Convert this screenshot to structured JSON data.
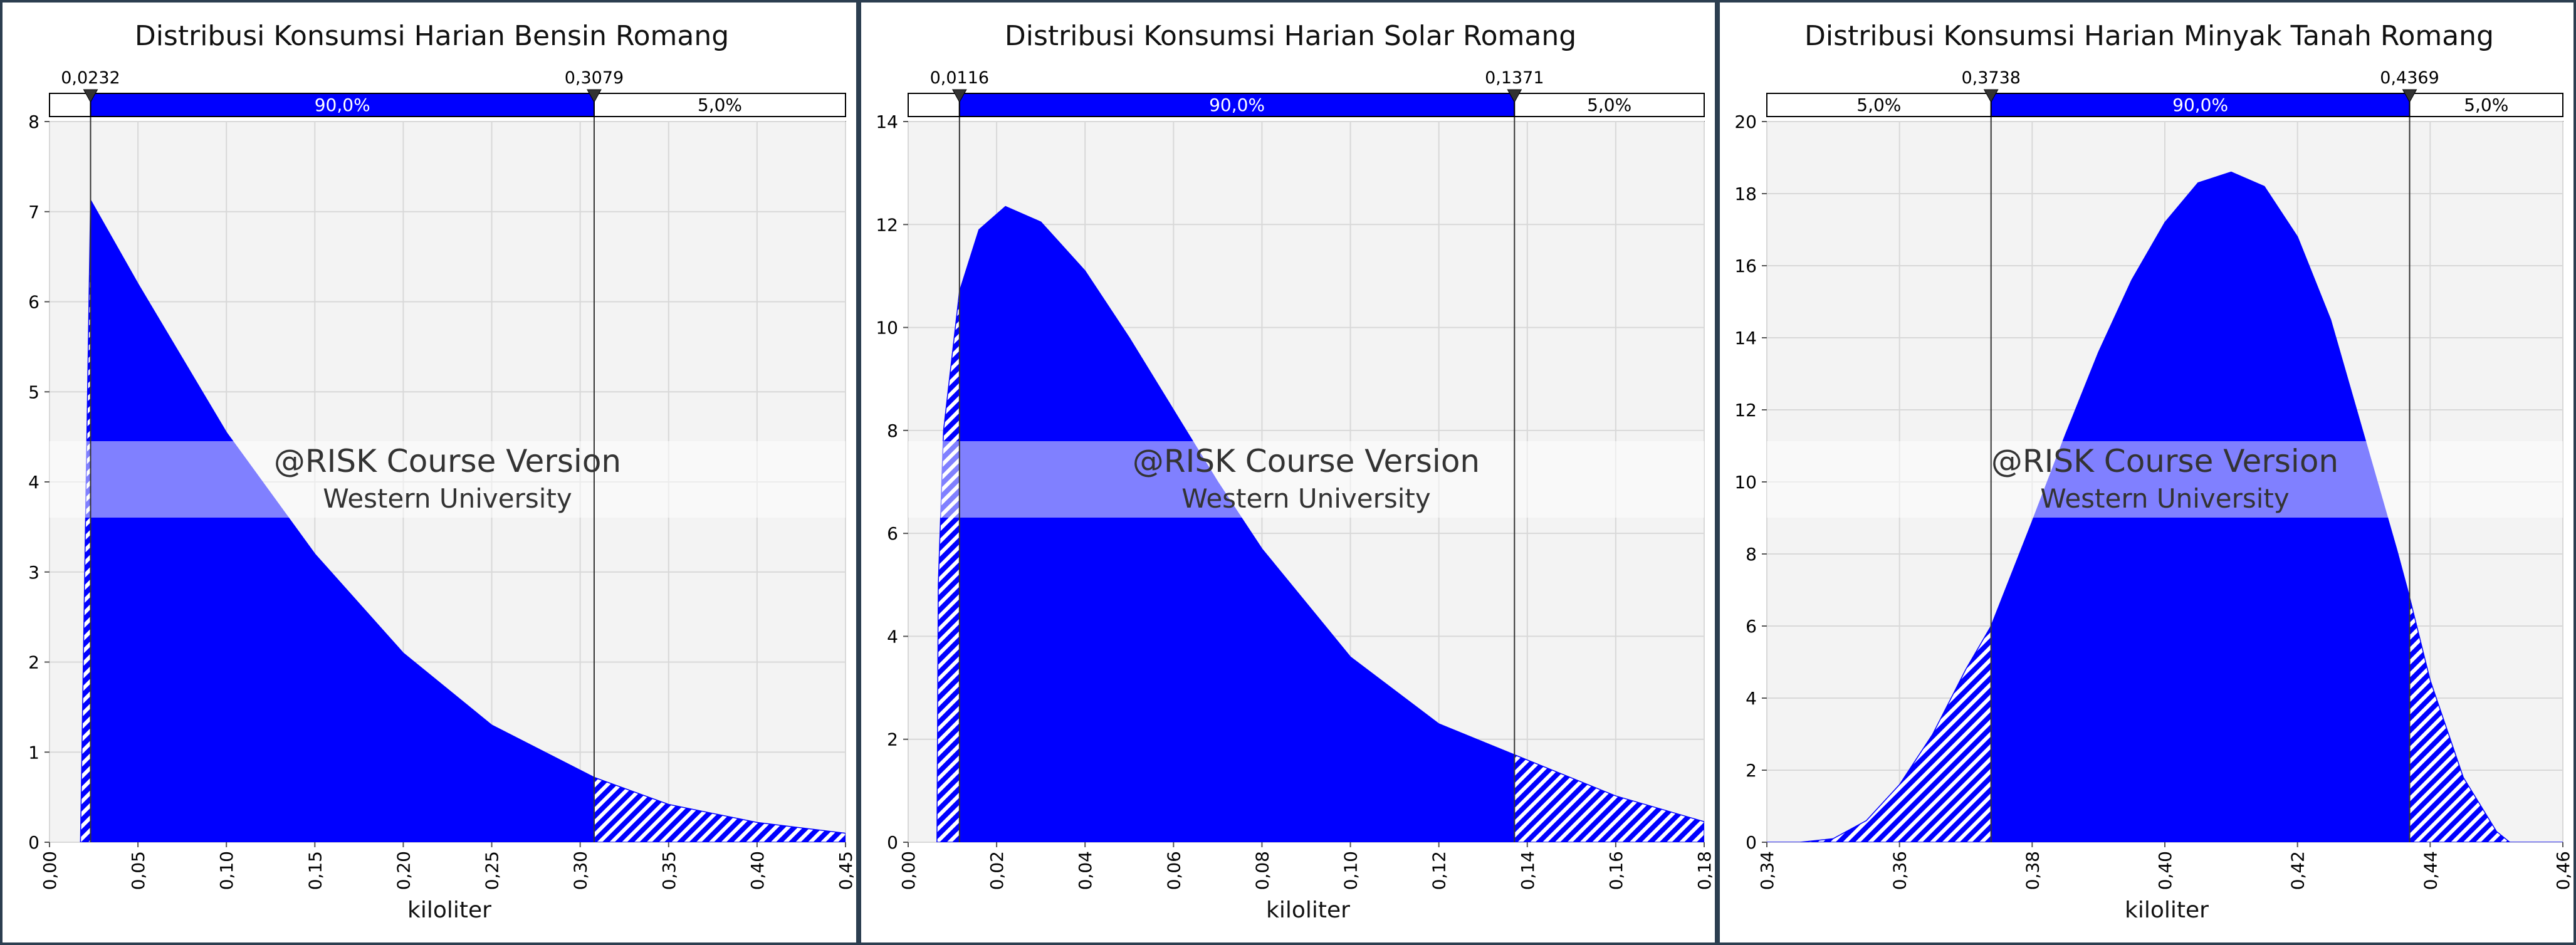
{
  "watermark": {
    "line1": "@RISK Course Version",
    "line2": "Western University"
  },
  "colors": {
    "fill": "#0000ff",
    "band": "#0000ff",
    "grid": "#d8d8d8",
    "plot_bg": "#f3f3f3"
  },
  "chart_data": [
    {
      "type": "area",
      "title": "Distribusi Konsumsi Harian Bensin Romang",
      "xlabel": "kiloliter",
      "ylabel": "",
      "xlim": [
        0,
        0.45
      ],
      "ylim": [
        0,
        8
      ],
      "x_ticks": [
        "0,00",
        "0,05",
        "0,10",
        "0,15",
        "0,20",
        "0,25",
        "0,30",
        "0,35",
        "0,40",
        "0,45"
      ],
      "y_ticks": [
        "0",
        "1",
        "2",
        "3",
        "4",
        "5",
        "6",
        "7",
        "8"
      ],
      "x": [
        0.0175,
        0.0175,
        0.0232,
        0.05,
        0.1,
        0.15,
        0.2,
        0.25,
        0.3079,
        0.35,
        0.4,
        0.45
      ],
      "y": [
        0,
        7.2,
        7.13,
        6.2,
        4.55,
        3.2,
        2.1,
        1.3,
        0.72,
        0.42,
        0.22,
        0.1
      ],
      "markers": [
        {
          "value": 0.0232,
          "label": "0,0232"
        },
        {
          "value": 0.3079,
          "label": "0,3079"
        }
      ],
      "bands": [
        {
          "from": 0.0,
          "to": 0.0232,
          "label": "",
          "highlight": false
        },
        {
          "from": 0.0232,
          "to": 0.3079,
          "label": "90,0%",
          "highlight": true
        },
        {
          "from": 0.3079,
          "to": 0.45,
          "label": "5,0%",
          "highlight": false
        }
      ]
    },
    {
      "type": "area",
      "title": "Distribusi Konsumsi Harian Solar Romang",
      "xlabel": "kiloliter",
      "ylabel": "",
      "xlim": [
        0,
        0.18
      ],
      "ylim": [
        0,
        14
      ],
      "x_ticks": [
        "0,00",
        "0,02",
        "0,04",
        "0,06",
        "0,08",
        "0,10",
        "0,12",
        "0,14",
        "0,16",
        "0,18"
      ],
      "y_ticks": [
        "0",
        "2",
        "4",
        "6",
        "8",
        "10",
        "12",
        "14"
      ],
      "x": [
        0.0065,
        0.0068,
        0.008,
        0.0116,
        0.016,
        0.022,
        0.03,
        0.04,
        0.05,
        0.06,
        0.07,
        0.08,
        0.1,
        0.12,
        0.1371,
        0.16,
        0.18
      ],
      "y": [
        0,
        5.0,
        8.0,
        10.7,
        11.9,
        12.35,
        12.05,
        11.1,
        9.8,
        8.4,
        7.0,
        5.7,
        3.6,
        2.3,
        1.7,
        0.9,
        0.4
      ],
      "markers": [
        {
          "value": 0.0116,
          "label": "0,0116"
        },
        {
          "value": 0.1371,
          "label": "0,1371"
        }
      ],
      "bands": [
        {
          "from": 0.0,
          "to": 0.0116,
          "label": "",
          "highlight": false
        },
        {
          "from": 0.0116,
          "to": 0.1371,
          "label": "90,0%",
          "highlight": true
        },
        {
          "from": 0.1371,
          "to": 0.18,
          "label": "5,0%",
          "highlight": false
        }
      ]
    },
    {
      "type": "area",
      "title": "Distribusi Konsumsi Harian Minyak Tanah Romang",
      "xlabel": "kiloliter",
      "ylabel": "",
      "xlim": [
        0.34,
        0.46
      ],
      "ylim": [
        0,
        20
      ],
      "x_ticks": [
        "0,34",
        "0,36",
        "0,38",
        "0,40",
        "0,42",
        "0,44",
        "0,46"
      ],
      "y_ticks": [
        "0",
        "2",
        "4",
        "6",
        "8",
        "10",
        "12",
        "14",
        "16",
        "18",
        "20"
      ],
      "x": [
        0.34,
        0.345,
        0.35,
        0.355,
        0.36,
        0.365,
        0.37,
        0.3738,
        0.38,
        0.385,
        0.39,
        0.395,
        0.4,
        0.405,
        0.41,
        0.415,
        0.42,
        0.425,
        0.43,
        0.435,
        0.4369,
        0.44,
        0.445,
        0.45,
        0.452,
        0.46
      ],
      "y": [
        0,
        0.0,
        0.1,
        0.6,
        1.6,
        3.0,
        4.8,
        6.0,
        8.9,
        11.3,
        13.6,
        15.6,
        17.2,
        18.3,
        18.6,
        18.2,
        16.8,
        14.5,
        11.3,
        8.1,
        6.8,
        4.5,
        1.8,
        0.3,
        0,
        0
      ],
      "markers": [
        {
          "value": 0.3738,
          "label": "0,3738"
        },
        {
          "value": 0.4369,
          "label": "0,4369"
        }
      ],
      "bands": [
        {
          "from": 0.34,
          "to": 0.3738,
          "label": "5,0%",
          "highlight": false
        },
        {
          "from": 0.3738,
          "to": 0.4369,
          "label": "90,0%",
          "highlight": true
        },
        {
          "from": 0.4369,
          "to": 0.46,
          "label": "5,0%",
          "highlight": false
        }
      ]
    }
  ]
}
